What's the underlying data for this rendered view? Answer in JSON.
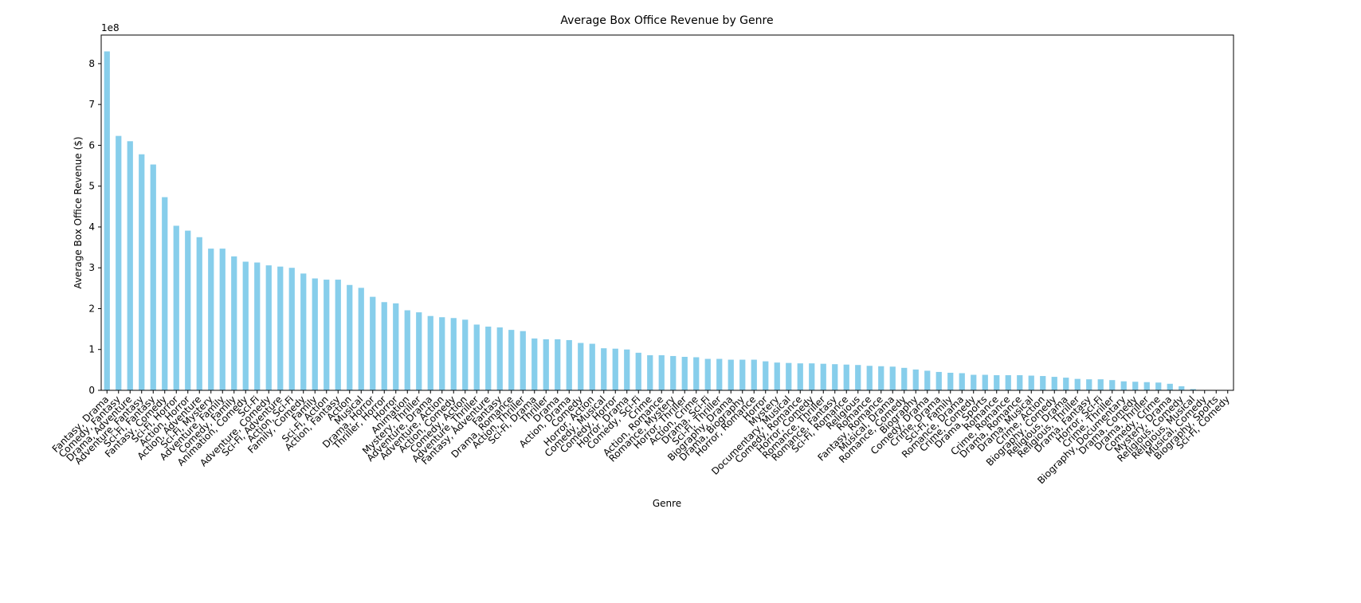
{
  "chart_data": {
    "type": "bar",
    "title": "Average Box Office Revenue by Genre",
    "x_label": "Genre",
    "y_label": "Average Box Office Revenue ($)",
    "y_offset_label": "1e8",
    "color": "#87ceeb",
    "categories": [
      "Fantasy, Drama",
      "Comedy, Fantasy",
      "Drama, Adventure",
      "Adventure, Fantasy",
      "Sci-Fi, Fantasy",
      "Fantasy, Comedy",
      "Sci-Fi, Horror",
      "Action, Horror",
      "Action, Adventure",
      "Sci-Fi, Mystery",
      "Adventure, Family",
      "Comedy, Family",
      "Animation, Comedy",
      "Sci-Fi",
      "Adventure, Comedy",
      "Sci-Fi, Adventure",
      "Action, Sci-Fi",
      "Family, Comedy",
      "Family",
      "Sci-Fi, Action",
      "Action, Fantasy",
      "Action",
      "Musical",
      "Drama, Horror",
      "Thriller, Horror",
      "Horror",
      "Animation",
      "Mystery, Thriller",
      "Adventure, Drama",
      "Adventure, Action",
      "Action, Comedy",
      "Comedy, Action",
      "Adventure, Thriller",
      "Fantasy, Adventure",
      "Fantasy",
      "Drama, Romance",
      "Action, Thriller",
      "Sci-Fi, Drama",
      "Thriller",
      "Drama",
      "Action, Drama",
      "Comedy",
      "Horror, Action",
      "Comedy, Musical",
      "Comedy, Horror",
      "Horror, Drama",
      "Comedy, Sci-Fi",
      "Crime",
      "Action, Romance",
      "Romance, Mystery",
      "Horror, Thriller",
      "Action, Crime",
      "Drama, Sci-Fi",
      "Sci-Fi, Thriller",
      "Biography, Drama",
      "Drama, Biography",
      "Horror, Romance",
      "Horror",
      "Mystery",
      "Documentary, Musical",
      "Comedy, Romance",
      "Horror, Comedy",
      "Romance, Thriller",
      "Romance, Fantasy",
      "Sci-Fi, Romance",
      "Religious",
      "Romance",
      "Fantasy, Romance",
      "Musical, Drama",
      "Romance, Comedy",
      "Biography",
      "Comedy, Drama",
      "Crime, Drama",
      "Sci-Fi, Family",
      "Romance, Drama",
      "Crime, Comedy",
      "Drama, Sports",
      "Romance",
      "Crime, Romance",
      "Drama, Romance",
      "Drama, Musical",
      "Crime, Action",
      "Biography, Comedy",
      "Religious, Drama",
      "Religious, Thriller",
      "Drama, Fantasy",
      "Horror, Sci-Fi",
      "Crime, Thriller",
      "Biography, Documentary",
      "Drama, Comedy",
      "Drama, Thriller",
      "Comedy, Crime",
      "Mystery, Drama",
      "Religious, Comedy",
      "Religious, Musical",
      "Musical, Comedy",
      "Biography, Sports",
      "Sci-Fi, Comedy"
    ],
    "values": [
      830000000,
      623000000,
      610000000,
      578000000,
      553000000,
      473000000,
      403000000,
      391000000,
      375000000,
      347000000,
      347000000,
      328000000,
      315000000,
      313000000,
      306000000,
      303000000,
      300000000,
      286000000,
      274000000,
      271000000,
      271000000,
      258000000,
      251000000,
      229000000,
      216000000,
      213000000,
      196000000,
      191000000,
      182000000,
      179000000,
      177000000,
      173000000,
      161000000,
      156000000,
      154000000,
      148000000,
      145000000,
      127000000,
      125000000,
      125000000,
      123000000,
      116000000,
      114000000,
      103000000,
      102000000,
      100000000,
      92000000,
      86000000,
      86000000,
      84000000,
      82000000,
      81000000,
      77000000,
      77000000,
      75000000,
      75000000,
      75000000,
      71000000,
      68000000,
      67000000,
      66000000,
      66000000,
      65000000,
      64000000,
      63000000,
      62000000,
      60000000,
      59000000,
      58000000,
      55000000,
      51000000,
      48000000,
      45000000,
      43000000,
      42000000,
      38000000,
      38000000,
      37000000,
      37000000,
      37000000,
      36000000,
      35000000,
      33000000,
      31000000,
      28000000,
      27000000,
      27000000,
      25000000,
      22000000,
      21000000,
      20000000,
      19000000,
      16000000,
      10000000,
      3000000,
      1000000,
      500000,
      300000
    ],
    "ylim": [
      0,
      870000000
    ],
    "yticks": [
      {
        "value": 0,
        "label": "0"
      },
      {
        "value": 100000000,
        "label": "1"
      },
      {
        "value": 200000000,
        "label": "2"
      },
      {
        "value": 300000000,
        "label": "3"
      },
      {
        "value": 400000000,
        "label": "4"
      },
      {
        "value": 500000000,
        "label": "5"
      },
      {
        "value": 600000000,
        "label": "6"
      },
      {
        "value": 700000000,
        "label": "7"
      },
      {
        "value": 800000000,
        "label": "8"
      }
    ]
  }
}
